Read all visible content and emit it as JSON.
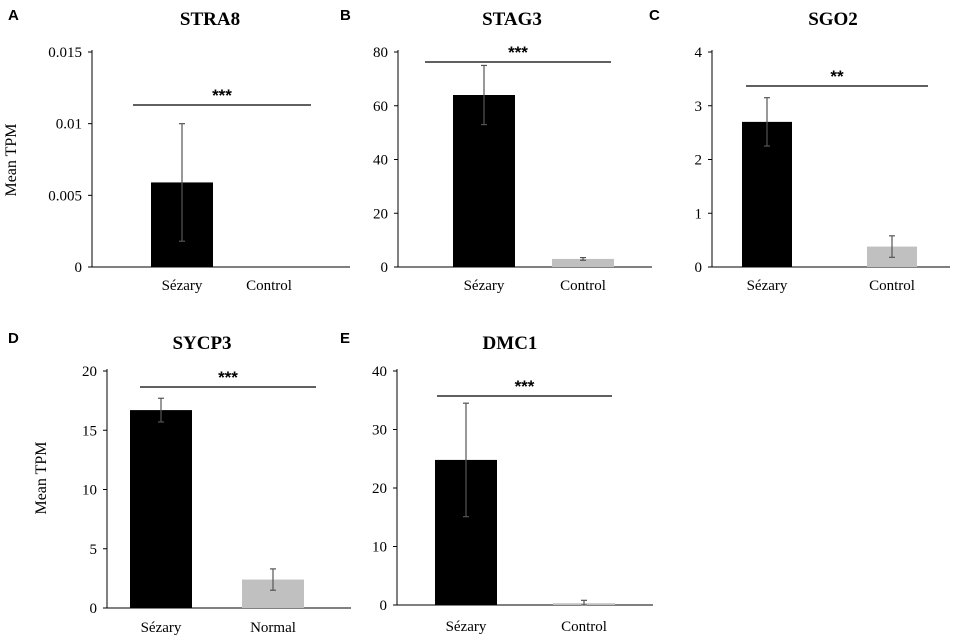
{
  "chart_data": [
    {
      "panel": "A",
      "type": "bar",
      "title": "STRA8",
      "ylabel": "Mean TPM",
      "categories": [
        "Sézary",
        "Control"
      ],
      "values": [
        0.0059,
        0
      ],
      "errors": [
        0.0041,
        0
      ],
      "colors": [
        "#000000",
        "#c0c0c0"
      ],
      "ylim": [
        0,
        0.015
      ],
      "yticks": [
        0,
        0.005,
        0.01,
        0.015
      ],
      "ytick_labels": [
        "0",
        "0.005",
        "0.01",
        "0.015"
      ],
      "significance": "***"
    },
    {
      "panel": "B",
      "type": "bar",
      "title": "STAG3",
      "ylabel": "",
      "categories": [
        "Sézary",
        "Control"
      ],
      "values": [
        64,
        3
      ],
      "errors": [
        11,
        0.5
      ],
      "colors": [
        "#000000",
        "#c0c0c0"
      ],
      "ylim": [
        0,
        80
      ],
      "yticks": [
        0,
        20,
        40,
        60,
        80
      ],
      "ytick_labels": [
        "0",
        "20",
        "40",
        "60",
        "80"
      ],
      "significance": "***"
    },
    {
      "panel": "C",
      "type": "bar",
      "title": "SGO2",
      "ylabel": "",
      "categories": [
        "Sézary",
        "Control"
      ],
      "values": [
        2.7,
        0.38
      ],
      "errors": [
        0.45,
        0.2
      ],
      "colors": [
        "#000000",
        "#c0c0c0"
      ],
      "ylim": [
        0,
        4
      ],
      "yticks": [
        0,
        1,
        2,
        3,
        4
      ],
      "ytick_labels": [
        "0",
        "1",
        "2",
        "3",
        "4"
      ],
      "significance": "**"
    },
    {
      "panel": "D",
      "type": "bar",
      "title": "SYCP3",
      "ylabel": "Mean TPM",
      "categories": [
        "Sézary",
        "Normal"
      ],
      "values": [
        16.7,
        2.4
      ],
      "errors": [
        1,
        0.9
      ],
      "colors": [
        "#000000",
        "#c0c0c0"
      ],
      "ylim": [
        0,
        20
      ],
      "yticks": [
        0,
        5,
        10,
        15,
        20
      ],
      "ytick_labels": [
        "0",
        "5",
        "10",
        "15",
        "20"
      ],
      "significance": "***"
    },
    {
      "panel": "E",
      "type": "bar",
      "title": "DMC1",
      "ylabel": "",
      "categories": [
        "Sézary",
        "Control"
      ],
      "values": [
        24.8,
        0.3
      ],
      "errors": [
        9.7,
        0.5
      ],
      "colors": [
        "#000000",
        "#c0c0c0"
      ],
      "ylim": [
        0,
        40
      ],
      "yticks": [
        0,
        10,
        20,
        30,
        40
      ],
      "ytick_labels": [
        "0",
        "10",
        "20",
        "30",
        "40"
      ],
      "significance": "***"
    }
  ]
}
